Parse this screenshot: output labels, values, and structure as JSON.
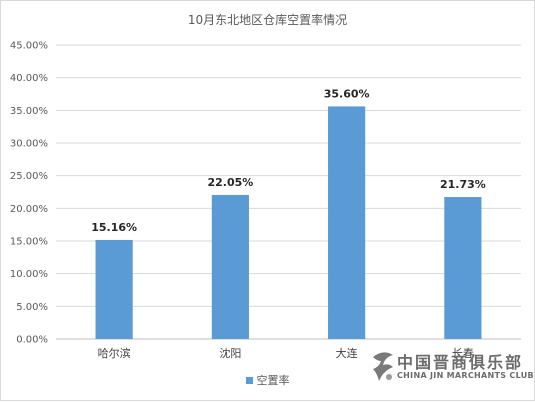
{
  "chart_data": {
    "type": "bar",
    "title": "10月东北地区仓库空置率情况",
    "categories": [
      "哈尔滨",
      "沈阳",
      "大连",
      "长春"
    ],
    "series": [
      {
        "name": "空置率",
        "values": [
          15.16,
          22.05,
          35.6,
          21.73
        ],
        "labels": [
          "15.16%",
          "22.05%",
          "35.60%",
          "21.73%"
        ],
        "color": "#5b9bd5"
      }
    ],
    "ylim": [
      0,
      45
    ],
    "yticks": [
      "0.00%",
      "5.00%",
      "10.00%",
      "15.00%",
      "20.00%",
      "25.00%",
      "30.00%",
      "35.00%",
      "40.00%",
      "45.00%"
    ],
    "grid": true,
    "legend_position": "bottom"
  },
  "watermark": {
    "cn": "中国晋商俱乐部",
    "en": "CHINA JIN MARCHANTS CLUB"
  }
}
